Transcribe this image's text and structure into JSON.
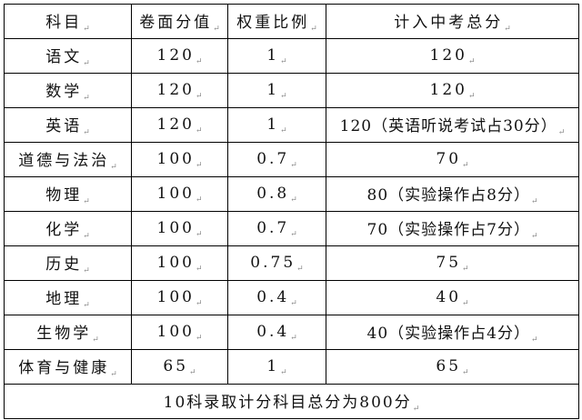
{
  "table": {
    "headers": [
      "科目",
      "卷面分值",
      "权重比例",
      "计入中考总分"
    ],
    "rows": [
      [
        "语文",
        "120",
        "1",
        "120"
      ],
      [
        "数学",
        "120",
        "1",
        "120"
      ],
      [
        "英语",
        "120",
        "1",
        "120（英语听说考试占30分）"
      ],
      [
        "道德与法治",
        "100",
        "0.7",
        "70"
      ],
      [
        "物理",
        "100",
        "0.8",
        "80（实验操作占8分）"
      ],
      [
        "化学",
        "100",
        "0.7",
        "70（实验操作占7分）"
      ],
      [
        "历史",
        "100",
        "0.75",
        "75"
      ],
      [
        "地理",
        "100",
        "0.4",
        "40"
      ],
      [
        "生物学",
        "100",
        "0.4",
        "40（实验操作占4分）"
      ],
      [
        "体育与健康",
        "65",
        "1",
        "65"
      ]
    ],
    "footer": "10科录取计分科目总分为800分"
  },
  "paragraph_mark": "↵"
}
